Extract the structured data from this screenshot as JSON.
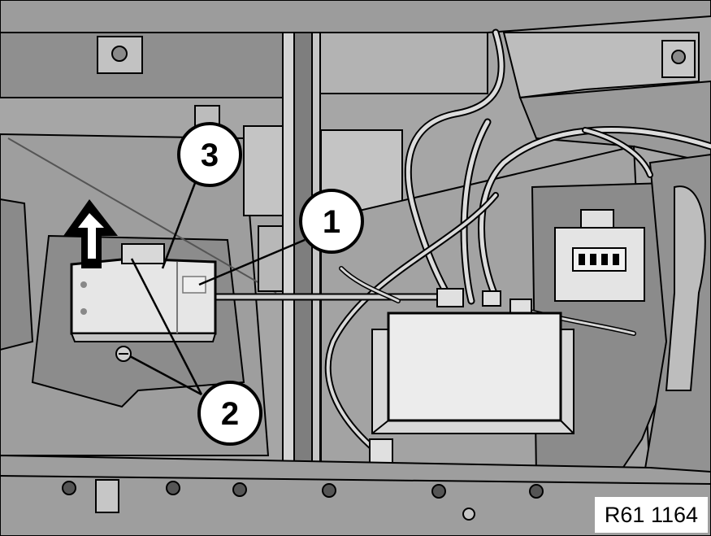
{
  "callouts": {
    "c1": "1",
    "c2": "2",
    "c3": "3"
  },
  "reference_code": "R61 1164",
  "colors": {
    "background_gray": "#a6a6a6",
    "light_component": "#e8e8e8",
    "outline": "#000000",
    "callout_fill": "#ffffff"
  },
  "icons": [
    "removal-arrow-icon",
    "screw-icon"
  ]
}
